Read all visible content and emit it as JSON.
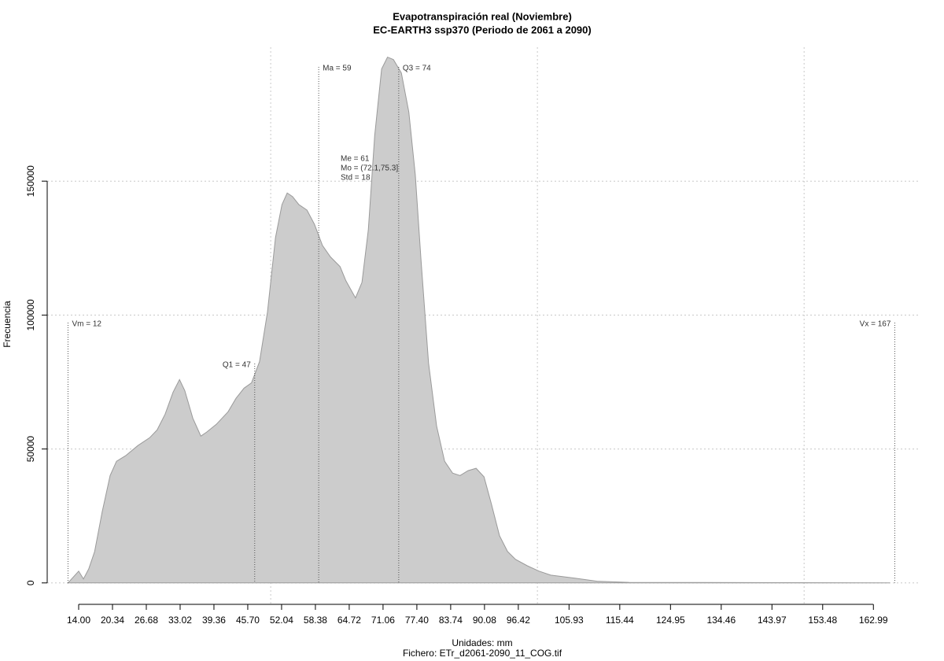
{
  "chart_data": {
    "type": "area",
    "title": "Evapotranspiración real (Noviembre)",
    "subtitle": "EC-EARTH3 ssp370 (Periodo de 2061 a 2090)",
    "x_label": "Unidades: mm",
    "file_label": "Fichero: ETr_d2061-2090_11_COG.tif",
    "y_label": "Frecuencia",
    "color": "#cccccc",
    "line_color": "#9a9a9a",
    "x": [
      12,
      14,
      14.9,
      15.9,
      17,
      18.4,
      19.9,
      21.1,
      22.8,
      25.1,
      27.3,
      28.7,
      30.2,
      31.7,
      32.9,
      33.9,
      35.4,
      36.9,
      38,
      39.8,
      42,
      43.5,
      45,
      46.4,
      47.9,
      49.4,
      50.9,
      52.1,
      53.1,
      54.1,
      55.3,
      56.8,
      58.2,
      59.7,
      61.2,
      63,
      64.1,
      65.9,
      67.1,
      68.3,
      69.5,
      70.8,
      71.9,
      73,
      74.5,
      75.9,
      77.1,
      78.2,
      79.6,
      81.1,
      82.6,
      84.1,
      85.5,
      87,
      88.5,
      90,
      91.4,
      92.9,
      94.4,
      95.9,
      98.1,
      100.3,
      102.5,
      106.9,
      111.3,
      117.2,
      166
    ],
    "values": [
      0,
      4400,
      1500,
      5300,
      11700,
      26400,
      40100,
      45400,
      47500,
      51300,
      54200,
      57100,
      63000,
      71200,
      75900,
      71800,
      61500,
      54800,
      56300,
      59200,
      63900,
      68900,
      72700,
      74700,
      82600,
      101100,
      128900,
      141200,
      145600,
      144200,
      141200,
      139200,
      133900,
      126000,
      121700,
      118100,
      112800,
      106400,
      112200,
      131800,
      167000,
      191900,
      196300,
      195400,
      190400,
      175800,
      152400,
      120100,
      82000,
      58600,
      45400,
      41000,
      40100,
      41900,
      42800,
      39600,
      29300,
      17600,
      11700,
      8800,
      6400,
      4400,
      2900,
      1800,
      600,
      200,
      0
    ],
    "xlim": [
      8.1,
      171.8
    ],
    "ylim": [
      -8000,
      200000
    ],
    "xticks": [
      {
        "value": 14,
        "label": "14.00"
      },
      20.34,
      26.68,
      33.02,
      39.36,
      {
        "value": 45.7,
        "label": "45.70"
      },
      52.04,
      58.38,
      64.72,
      71.06,
      {
        "value": 77.4,
        "label": "77.40"
      },
      83.74,
      90.08,
      96.42,
      105.93,
      115.44,
      124.95,
      134.46,
      143.97,
      153.48,
      162.99
    ],
    "yticks": [
      0,
      50000,
      100000,
      150000
    ],
    "xgrid": [
      50,
      100,
      150
    ],
    "grid": true,
    "annotations": [
      {
        "label": "Vm = 12",
        "x": 12
      },
      {
        "label": "Q1 = 47",
        "x": 47
      },
      {
        "label": "Ma = 59",
        "x": 59
      },
      {
        "label": "Q3 = 74",
        "x": 74
      },
      {
        "label": "Vx = 167",
        "x": 167
      }
    ],
    "stats": [
      "Me = 61",
      "Mo = (72.1,75.3]",
      "Std = 18"
    ]
  }
}
